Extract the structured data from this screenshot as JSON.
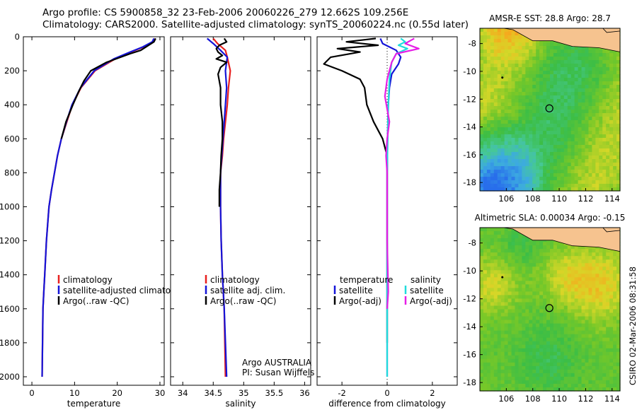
{
  "figure": {
    "title_line1": "Argo profile: CS 5900858_32 23-Feb-2006 20060226_279 12.662S 109.256E",
    "title_line2": "Climatology: CARS2000. Satellite-adjusted climatology: synTS_20060224.nc (0.55d later)",
    "side_stamp": "CSIRO 02-Mar-2006 08:31:58",
    "colors": {
      "climatology": "#e8201f",
      "satellite": "#1414d8",
      "argo": "#000000",
      "sat_salinity": "#20dcdc",
      "argo_salinity": "#e61ee6",
      "land": "#f6c38f"
    }
  },
  "chart_data": [
    {
      "id": "temperature",
      "type": "line",
      "xlabel": "temperature",
      "xlim": [
        -2,
        31
      ],
      "xticks": [
        0,
        10,
        20,
        30
      ],
      "ylim": [
        2050,
        0
      ],
      "yticks": [
        0,
        200,
        400,
        600,
        800,
        1000,
        1200,
        1400,
        1600,
        1800,
        2000
      ],
      "legend": {
        "placement": "lower-right",
        "entries": [
          "climatology",
          "satellite-adjusted climatology",
          "Argo(..raw -QC)"
        ]
      },
      "series": [
        {
          "name": "climatology",
          "color": "#e8201f",
          "x": [
            28.9,
            28.5,
            26.2,
            23.2,
            19.5,
            14.8,
            11.5,
            9.5,
            8.2,
            6.9,
            6.0,
            5.3,
            4.6,
            4.0,
            3.7,
            3.4,
            3.2,
            3.0,
            2.8,
            2.6,
            2.4
          ],
          "y": [
            10,
            30,
            60,
            90,
            130,
            200,
            300,
            400,
            500,
            600,
            700,
            800,
            900,
            1000,
            1100,
            1200,
            1300,
            1400,
            1500,
            1600,
            2000
          ]
        },
        {
          "name": "satellite-adjusted climatology",
          "color": "#1414d8",
          "x": [
            28.6,
            28.2,
            26.0,
            23.0,
            19.2,
            14.6,
            11.4,
            9.4,
            8.1,
            6.9,
            6.0,
            5.3,
            4.6,
            4.0,
            3.7,
            3.4,
            3.2,
            3.0,
            2.8,
            2.6,
            2.4
          ],
          "y": [
            10,
            30,
            60,
            90,
            130,
            200,
            300,
            400,
            500,
            600,
            700,
            800,
            900,
            1000,
            1100,
            1200,
            1300,
            1400,
            1500,
            1600,
            2000
          ]
        },
        {
          "name": "Argo(..raw -QC)",
          "color": "#000000",
          "x": [
            29.0,
            28.6,
            25.5,
            23.0,
            17.5,
            13.8,
            12.2,
            11.0,
            9.6,
            8.0,
            6.9
          ],
          "y": [
            10,
            30,
            80,
            100,
            150,
            200,
            260,
            320,
            400,
            500,
            600
          ]
        }
      ]
    },
    {
      "id": "salinity",
      "type": "line",
      "xlabel": "salinity",
      "xlim": [
        33.8,
        36.1
      ],
      "xticks": [
        34,
        34.5,
        35,
        35.5,
        36
      ],
      "ylim": [
        2050,
        0
      ],
      "yticks": [
        0,
        200,
        400,
        600,
        800,
        1000,
        1200,
        1400,
        1600,
        1800,
        2000
      ],
      "legend": {
        "placement": "lower-right",
        "entries": [
          "climatology",
          "satellite adj. clim.",
          "Argo(..raw -QC)"
        ]
      },
      "annotation": [
        "Argo AUSTRALIA",
        "PI: Susan Wijffels"
      ],
      "series": [
        {
          "name": "climatology",
          "color": "#e8201f",
          "x": [
            34.5,
            34.57,
            34.7,
            34.73,
            34.78,
            34.75,
            34.73,
            34.7,
            34.67,
            34.65,
            34.62,
            34.62,
            34.63,
            34.65,
            34.68,
            34.7
          ],
          "y": [
            10,
            40,
            80,
            120,
            200,
            300,
            400,
            500,
            600,
            700,
            800,
            1000,
            1200,
            1400,
            1600,
            2000
          ]
        },
        {
          "name": "satellite adj. clim.",
          "color": "#1414d8",
          "x": [
            34.4,
            34.5,
            34.62,
            34.73,
            34.7,
            34.72,
            34.7,
            34.68,
            34.66,
            34.64,
            34.62,
            34.62,
            34.63,
            34.65,
            34.68,
            34.72
          ],
          "y": [
            10,
            40,
            80,
            120,
            200,
            300,
            400,
            500,
            600,
            700,
            800,
            1000,
            1200,
            1400,
            1600,
            2000
          ]
        },
        {
          "name": "Argo(..raw -QC)",
          "color": "#000000",
          "x": [
            34.68,
            34.72,
            34.6,
            34.55,
            34.58,
            34.65,
            34.55,
            34.72,
            34.62,
            34.58,
            34.62,
            34.62,
            34.65,
            34.65,
            34.63,
            34.62,
            34.6,
            34.6
          ],
          "y": [
            10,
            30,
            50,
            70,
            90,
            110,
            130,
            150,
            180,
            220,
            300,
            400,
            500,
            600,
            700,
            800,
            900,
            1000
          ]
        }
      ]
    },
    {
      "id": "difference",
      "type": "line",
      "xlabel": "difference from climatology",
      "xlim": [
        -3.1,
        3.1
      ],
      "xticks": [
        -2,
        0,
        2
      ],
      "ylim": [
        2050,
        0
      ],
      "yticks": [
        0,
        200,
        400,
        600,
        800,
        1000,
        1200,
        1400,
        1600,
        1800,
        2000
      ],
      "legend": {
        "placement": "lower-right",
        "columns": [
          [
            "temperature",
            "satellite",
            "Argo(-adj)"
          ],
          [
            "salinity",
            "satellite",
            "Argo(-adj)"
          ]
        ]
      },
      "series": [
        {
          "name": "temperature satellite",
          "color": "#1414d8",
          "x": [
            -0.3,
            -0.2,
            0.4,
            0.6,
            0.5,
            0.2,
            0.1,
            0.05,
            0.02,
            0.0,
            0.0
          ],
          "y": [
            10,
            40,
            80,
            120,
            160,
            220,
            300,
            400,
            600,
            800,
            2000
          ]
        },
        {
          "name": "temperature Argo(-adj)",
          "color": "#000000",
          "x": [
            -0.5,
            -1.8,
            -0.4,
            -2.2,
            -1.2,
            -2.5,
            -2.8,
            -2.0,
            -1.2,
            -1.0,
            -0.9,
            -0.6,
            -0.2,
            0.0,
            0.0
          ],
          "y": [
            10,
            30,
            50,
            70,
            90,
            120,
            160,
            200,
            250,
            300,
            400,
            500,
            600,
            700,
            1800
          ]
        },
        {
          "name": "salinity satellite",
          "color": "#20dcdc",
          "x": [
            0.6,
            0.8,
            0.5,
            0.9,
            0.4,
            0.2,
            0.1,
            0.05,
            0.0,
            0.0
          ],
          "y": [
            10,
            30,
            50,
            70,
            100,
            150,
            250,
            400,
            800,
            2000
          ]
        },
        {
          "name": "salinity Argo(-adj)",
          "color": "#e61ee6",
          "x": [
            1.2,
            0.8,
            1.4,
            0.4,
            0.2,
            0.0,
            -0.1,
            0.1,
            0.0,
            -0.05,
            0.0,
            0.0,
            0.05,
            0.0
          ],
          "y": [
            10,
            40,
            70,
            100,
            150,
            250,
            350,
            500,
            600,
            700,
            800,
            1200,
            1500,
            1600
          ]
        }
      ]
    },
    {
      "id": "sst-map",
      "type": "heatmap",
      "title": "AMSR-E SST: 28.8 Argo: 28.7",
      "xlim": [
        104,
        114.6
      ],
      "xticks": [
        106,
        108,
        110,
        112,
        114
      ],
      "ylim": [
        -18.6,
        -6.9
      ],
      "yticks": [
        -8,
        -10,
        -12,
        -14,
        -16,
        -18
      ],
      "profile_location": {
        "lon": 109.256,
        "lat": -12.662
      }
    },
    {
      "id": "sla-map",
      "type": "heatmap",
      "title": "Altimetric SLA: 0.00034 Argo: -0.15",
      "xlim": [
        104,
        114.6
      ],
      "xticks": [
        106,
        108,
        110,
        112,
        114
      ],
      "ylim": [
        -18.6,
        -6.9
      ],
      "yticks": [
        -8,
        -10,
        -12,
        -14,
        -16,
        -18
      ],
      "profile_location": {
        "lon": 109.256,
        "lat": -12.662
      }
    }
  ]
}
